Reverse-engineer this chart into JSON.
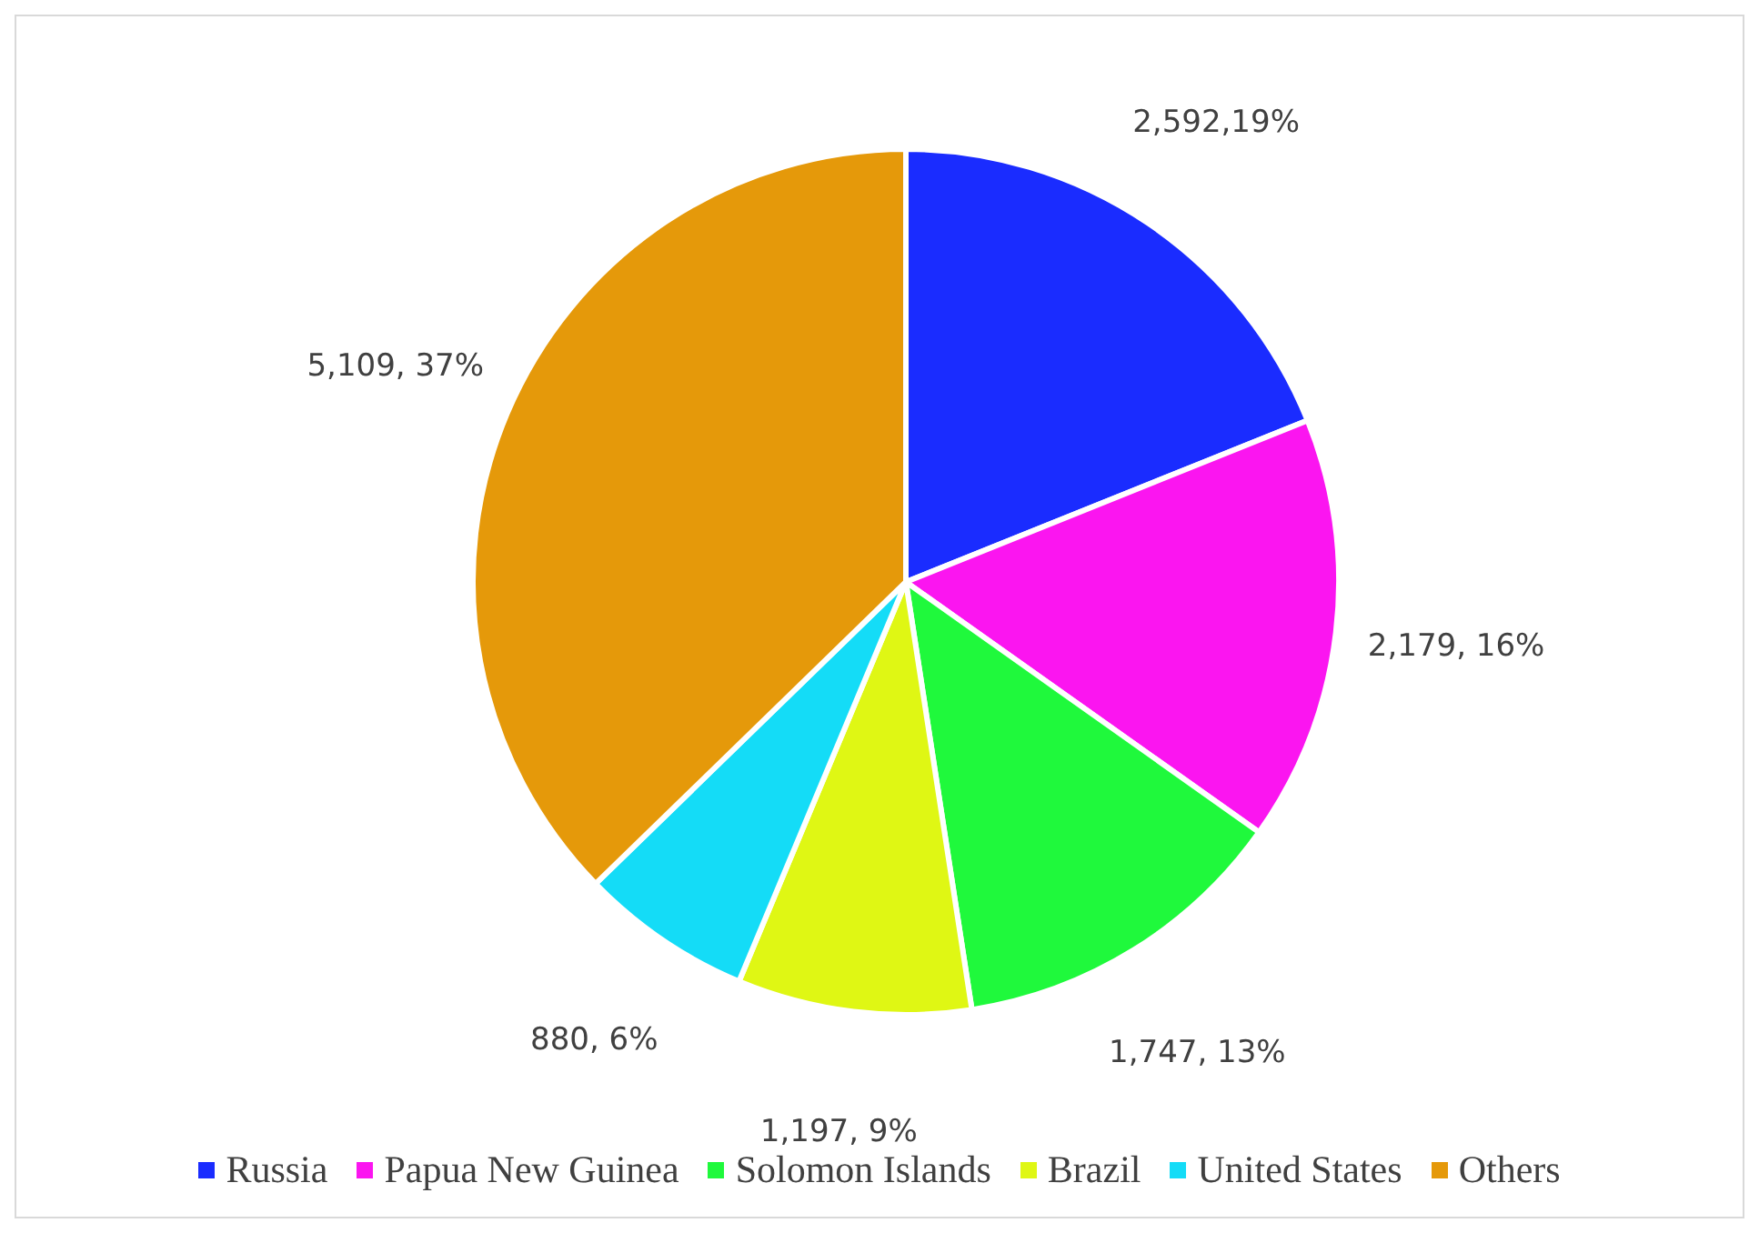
{
  "chart_data": {
    "type": "pie",
    "categories": [
      "Russia",
      "Papua New Guinea",
      "Solomon Islands",
      "Brazil",
      "United States",
      "Others"
    ],
    "values": [
      2592,
      2179,
      1747,
      1197,
      880,
      5109
    ],
    "colors": [
      "#1a2cff",
      "#fb15f0",
      "#1ff93c",
      "#dff714",
      "#14dcf7",
      "#e5990a"
    ],
    "value_labels": [
      "2,592,19%",
      "2,179, 16%",
      "1,747, 13%",
      "1,197, 9%",
      "880, 6%",
      "5,109, 37%"
    ],
    "legend": "bottom"
  }
}
